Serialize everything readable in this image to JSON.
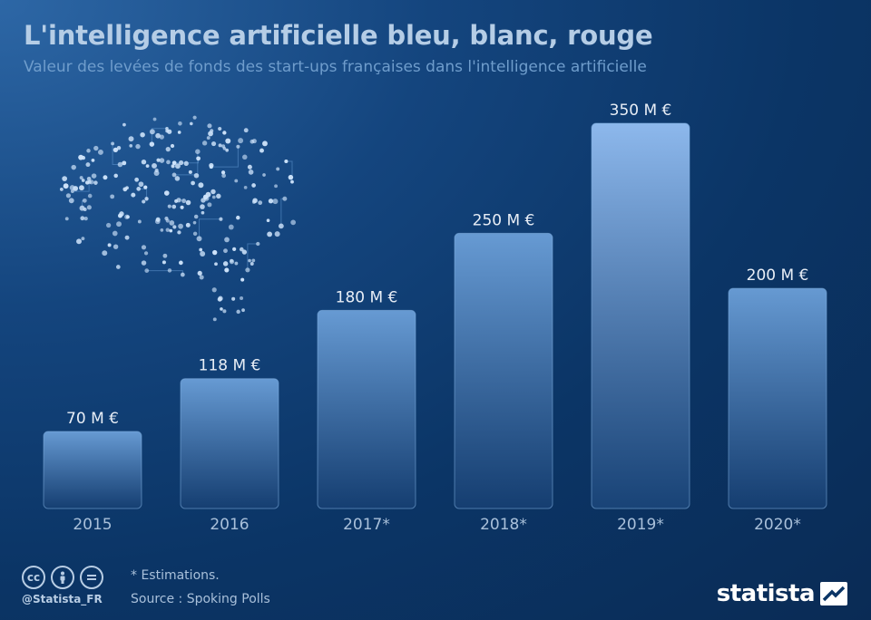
{
  "title": "L'intelligence artificielle bleu, blanc, rouge",
  "subtitle": "Valeur des levées de fonds des start-ups françaises dans l'intelligence artificielle",
  "chart_data": {
    "type": "bar",
    "categories": [
      "2015",
      "2016",
      "2017*",
      "2018*",
      "2019*",
      "2020*"
    ],
    "values": [
      70,
      118,
      180,
      250,
      350,
      200
    ],
    "value_labels": [
      "70 M €",
      "118 M €",
      "180 M €",
      "250 M €",
      "350 M €",
      "200 M €"
    ],
    "unit": "M €",
    "ylim": [
      0,
      350
    ],
    "grid": false,
    "legend": "none",
    "highlight_category": "2019*"
  },
  "footer": {
    "handle": "@Statista_FR",
    "note": "* Estimations.",
    "source": "Source : Spoking Polls",
    "logo_text": "statista",
    "cc_icons": [
      "creative-commons-icon",
      "attribution-person-icon",
      "no-derivatives-icon"
    ]
  },
  "colors": {
    "background": "#0b3566",
    "title": "#b5cde6",
    "subtitle": "#6f9dcc",
    "bar_top": "#6b9fd8",
    "bar_bottom": "#163f72",
    "bar_highlight_top": "#8db8ec",
    "label": "#e8eef6",
    "axis_label": "#a9c0da"
  }
}
